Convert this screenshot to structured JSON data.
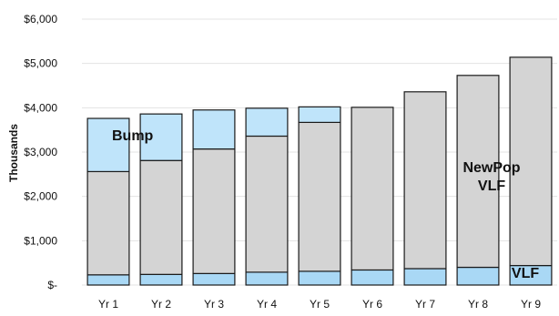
{
  "chart_data": {
    "type": "bar",
    "stacked": true,
    "categories": [
      "Yr 1",
      "Yr 2",
      "Yr 3",
      "Yr 4",
      "Yr 5",
      "Yr 6",
      "Yr 7",
      "Yr 8",
      "Yr 9"
    ],
    "series": [
      {
        "key": "vlf",
        "values": [
          230,
          240,
          260,
          290,
          310,
          340,
          370,
          400,
          440
        ],
        "color": "#a9d8f5"
      },
      {
        "key": "newpop",
        "values": [
          2330,
          2570,
          2810,
          3070,
          3360,
          3670,
          3990,
          4330,
          4700
        ],
        "color": "#d4d4d4"
      },
      {
        "key": "bump",
        "values": [
          1200,
          1050,
          880,
          630,
          350,
          0,
          0,
          0,
          0
        ],
        "color": "#bfe4fa"
      }
    ],
    "ylabel": "Thousands",
    "ylim": [
      0,
      6000
    ],
    "yticks": [
      0,
      1000,
      2000,
      3000,
      4000,
      5000,
      6000
    ],
    "ytick_labels": [
      "$-",
      "$1,000",
      "$2,000",
      "$3,000",
      "$4,000",
      "$5,000",
      "$6,000"
    ],
    "gridlines": true,
    "annotations": [
      {
        "text": "Bump",
        "series": "bump"
      },
      {
        "text": "NewPop\nVLF",
        "series": "newpop"
      },
      {
        "text": "VLF",
        "series": "vlf"
      }
    ]
  }
}
